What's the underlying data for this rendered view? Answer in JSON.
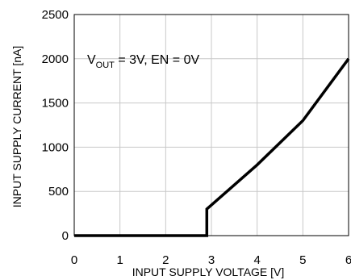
{
  "chart_data": {
    "type": "line",
    "title": "",
    "xlabel": "INPUT SUPPLY VOLTAGE [V]",
    "ylabel": "INPUT SUPPLY CURRENT [nA]",
    "xlim": [
      0,
      6
    ],
    "ylim": [
      0,
      2500
    ],
    "xticks": [
      "0",
      "1",
      "2",
      "3",
      "4",
      "5",
      "6"
    ],
    "yticks": [
      "0",
      "500",
      "1000",
      "1500",
      "2000",
      "2500"
    ],
    "grid": true,
    "legend": "none",
    "annotation": {
      "prefix": "V",
      "subscript": "OUT",
      "suffix": " = 3V, EN = 0V"
    },
    "series": [
      {
        "x": [
          0,
          2.9,
          2.9,
          4.0,
          5.0,
          6.0
        ],
        "y": [
          0,
          0,
          300,
          800,
          1300,
          2000
        ],
        "color": "#000000"
      }
    ]
  }
}
